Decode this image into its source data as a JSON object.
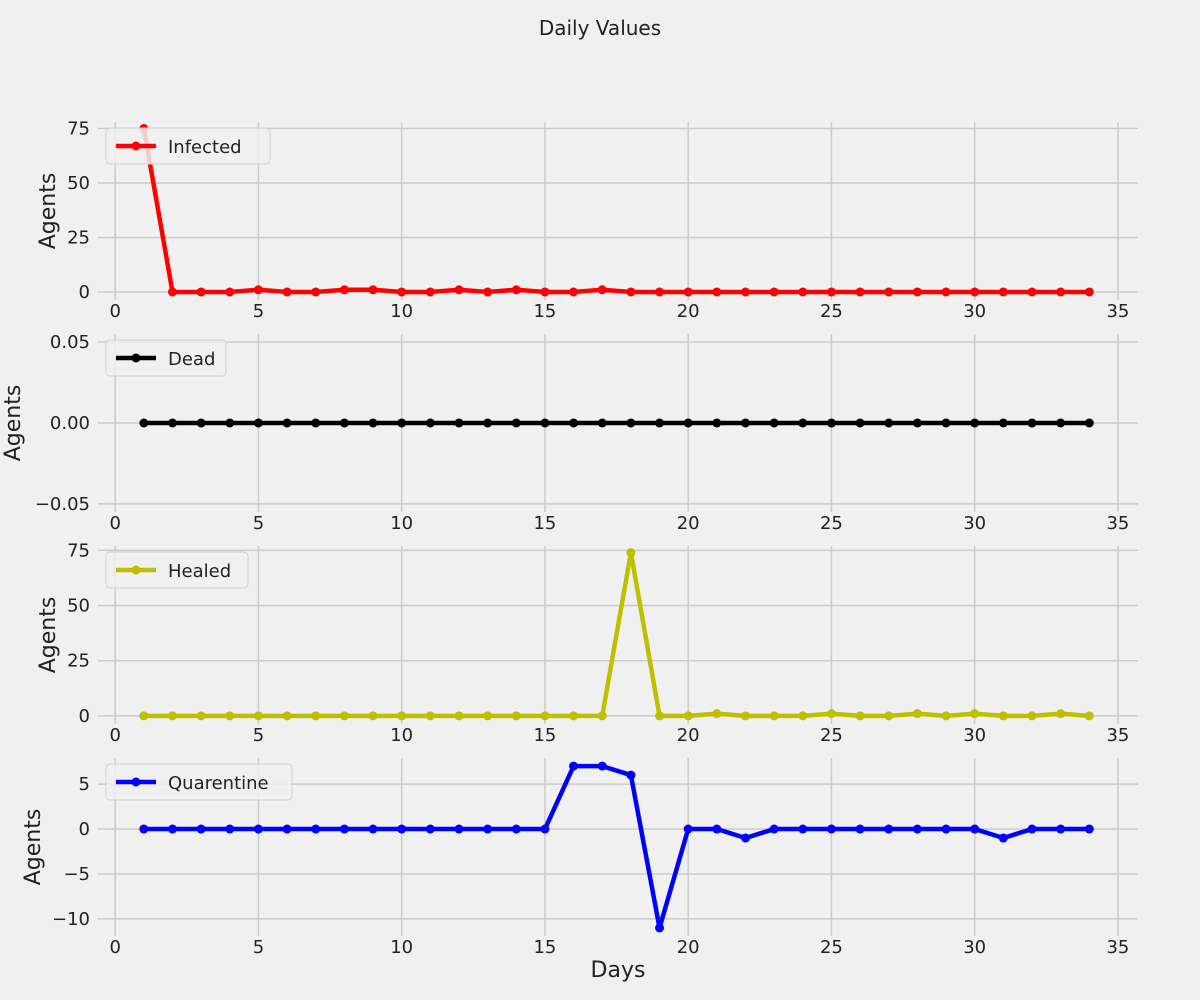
{
  "figure": {
    "title": "Daily Values",
    "background": "#f0f0f0",
    "grid_color": "#cbcbcb"
  },
  "chart_data": [
    {
      "type": "line",
      "legend": {
        "placement": "top-left"
      },
      "grid": true,
      "xlabel": "",
      "ylabel": "Agents",
      "xlim": [
        -0.6,
        35.7
      ],
      "ylim": [
        -3.7,
        78
      ],
      "xticks": [
        "0",
        "5",
        "10",
        "15",
        "20",
        "25",
        "30",
        "35"
      ],
      "xtick_values": [
        0,
        5,
        10,
        15,
        20,
        25,
        30,
        35
      ],
      "yticks": [
        "0",
        "25",
        "50",
        "75"
      ],
      "ytick_values": [
        0,
        25,
        50,
        75
      ],
      "series": [
        {
          "name": "Infected",
          "color": "#ff0000",
          "x": [
            1,
            2,
            3,
            4,
            5,
            6,
            7,
            8,
            9,
            10,
            11,
            12,
            13,
            14,
            15,
            16,
            17,
            18,
            19,
            20,
            21,
            22,
            23,
            24,
            25,
            26,
            27,
            28,
            29,
            30,
            31,
            32,
            33,
            34
          ],
          "values": [
            75,
            0,
            0,
            0,
            1,
            0,
            0,
            1,
            1,
            0,
            0,
            1,
            0,
            1,
            0,
            0,
            1,
            0,
            0,
            0,
            0,
            0,
            0,
            0,
            0,
            0,
            0,
            0,
            0,
            0,
            0,
            0,
            0,
            0
          ]
        }
      ]
    },
    {
      "type": "line",
      "legend": {
        "placement": "top-left"
      },
      "grid": true,
      "xlabel": "",
      "ylabel": "Agents",
      "xlim": [
        -0.6,
        35.7
      ],
      "ylim": [
        -0.055,
        0.055
      ],
      "xticks": [
        "0",
        "5",
        "10",
        "15",
        "20",
        "25",
        "30",
        "35"
      ],
      "xtick_values": [
        0,
        5,
        10,
        15,
        20,
        25,
        30,
        35
      ],
      "yticks": [
        "−0.05",
        "0.00",
        "0.05"
      ],
      "ytick_values": [
        -0.05,
        0,
        0.05
      ],
      "series": [
        {
          "name": "Dead",
          "color": "#000000",
          "x": [
            1,
            2,
            3,
            4,
            5,
            6,
            7,
            8,
            9,
            10,
            11,
            12,
            13,
            14,
            15,
            16,
            17,
            18,
            19,
            20,
            21,
            22,
            23,
            24,
            25,
            26,
            27,
            28,
            29,
            30,
            31,
            32,
            33,
            34
          ],
          "values": [
            0,
            0,
            0,
            0,
            0,
            0,
            0,
            0,
            0,
            0,
            0,
            0,
            0,
            0,
            0,
            0,
            0,
            0,
            0,
            0,
            0,
            0,
            0,
            0,
            0,
            0,
            0,
            0,
            0,
            0,
            0,
            0,
            0,
            0
          ]
        }
      ]
    },
    {
      "type": "line",
      "legend": {
        "placement": "top-left"
      },
      "grid": true,
      "xlabel": "",
      "ylabel": "Agents",
      "xlim": [
        -0.6,
        35.7
      ],
      "ylim": [
        -3.7,
        77
      ],
      "xticks": [
        "0",
        "5",
        "10",
        "15",
        "20",
        "25",
        "30",
        "35"
      ],
      "xtick_values": [
        0,
        5,
        10,
        15,
        20,
        25,
        30,
        35
      ],
      "yticks": [
        "0",
        "25",
        "50",
        "75"
      ],
      "ytick_values": [
        0,
        25,
        50,
        75
      ],
      "series": [
        {
          "name": "Healed",
          "color": "#bfbf00",
          "x": [
            1,
            2,
            3,
            4,
            5,
            6,
            7,
            8,
            9,
            10,
            11,
            12,
            13,
            14,
            15,
            16,
            17,
            18,
            19,
            20,
            21,
            22,
            23,
            24,
            25,
            26,
            27,
            28,
            29,
            30,
            31,
            32,
            33,
            34
          ],
          "values": [
            0,
            0,
            0,
            0,
            0,
            0,
            0,
            0,
            0,
            0,
            0,
            0,
            0,
            0,
            0,
            0,
            0,
            74,
            0,
            0,
            1,
            0,
            0,
            0,
            1,
            0,
            0,
            1,
            0,
            1,
            0,
            0,
            1,
            0
          ]
        }
      ]
    },
    {
      "type": "line",
      "legend": {
        "placement": "top-left"
      },
      "grid": true,
      "xlabel": "Days",
      "ylabel": "Agents",
      "xlim": [
        -0.6,
        35.7
      ],
      "ylim": [
        -11.9,
        7.9
      ],
      "xticks": [
        "0",
        "5",
        "10",
        "15",
        "20",
        "25",
        "30",
        "35"
      ],
      "xtick_values": [
        0,
        5,
        10,
        15,
        20,
        25,
        30,
        35
      ],
      "yticks": [
        "−10",
        "−5",
        "0",
        "5"
      ],
      "ytick_values": [
        -10,
        -5,
        0,
        5
      ],
      "series": [
        {
          "name": "Quarentine",
          "color": "#0000ff",
          "x": [
            1,
            2,
            3,
            4,
            5,
            6,
            7,
            8,
            9,
            10,
            11,
            12,
            13,
            14,
            15,
            16,
            17,
            18,
            19,
            20,
            21,
            22,
            23,
            24,
            25,
            26,
            27,
            28,
            29,
            30,
            31,
            32,
            33,
            34
          ],
          "values": [
            0,
            0,
            0,
            0,
            0,
            0,
            0,
            0,
            0,
            0,
            0,
            0,
            0,
            0,
            0,
            7,
            7,
            6,
            -11,
            0,
            0,
            -1,
            0,
            0,
            0,
            0,
            0,
            0,
            0,
            0,
            -1,
            0,
            0,
            0
          ]
        }
      ]
    }
  ]
}
